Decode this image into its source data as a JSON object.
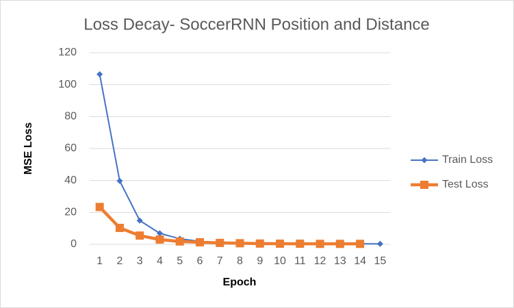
{
  "chart_data": {
    "type": "line",
    "title": "Loss Decay- SoccerRNN Position and Distance",
    "xlabel": "Epoch",
    "ylabel": "MSE Loss",
    "categories": [
      "1",
      "2",
      "3",
      "4",
      "5",
      "6",
      "7",
      "8",
      "9",
      "10",
      "11",
      "12",
      "13",
      "14",
      "15"
    ],
    "series": [
      {
        "name": "Train Loss",
        "color": "#4472c4",
        "marker": "diamond",
        "values": [
          106.5,
          39.7,
          14.9,
          6.9,
          3.5,
          1.9,
          1.2,
          0.9,
          0.6,
          0.5,
          0.4,
          0.4,
          0.3,
          0.3,
          0.3
        ]
      },
      {
        "name": "Test Loss",
        "color": "#ed7d31",
        "marker": "square",
        "values": [
          23.4,
          10.3,
          5.5,
          3.0,
          1.8,
          1.3,
          0.9,
          0.7,
          0.5,
          0.4,
          0.4,
          0.3,
          0.3,
          0.3,
          null
        ]
      }
    ],
    "ylim": [
      0,
      120
    ],
    "yticks": [
      0,
      20,
      40,
      60,
      80,
      100,
      120
    ],
    "grid": true,
    "legend": "right"
  }
}
